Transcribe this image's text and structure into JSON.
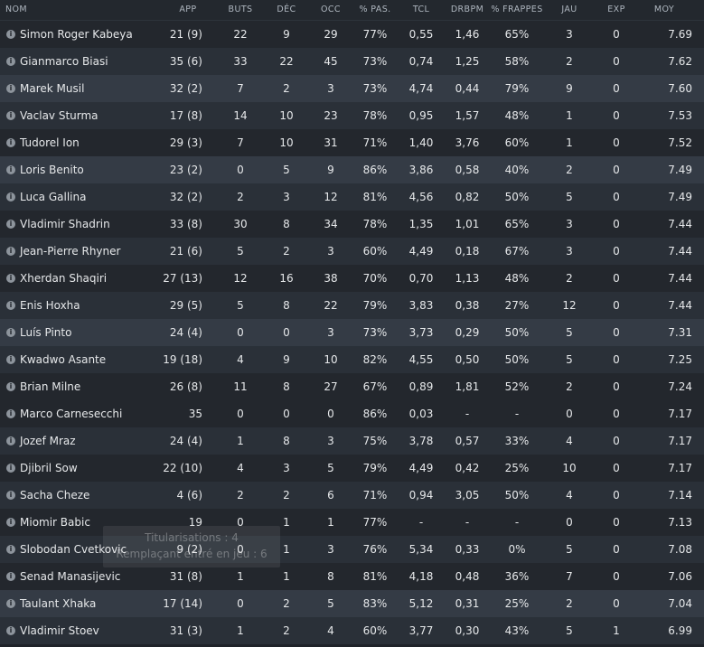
{
  "columns": {
    "name": "NOM",
    "app": "APP",
    "buts": "BUTS",
    "dec": "DÉC",
    "occ": "OCC",
    "pas": "% PAS.",
    "tcl": "TCL",
    "drbpm": "DRBPM",
    "frappes": "% FRAPPES",
    "jau": "JAU",
    "exp": "EXP",
    "moy": "MOY"
  },
  "info_icon": "info-icon",
  "rows": [
    {
      "name": "Simon Roger Kabeya",
      "app": "21 (9)",
      "buts": "22",
      "dec": "9",
      "occ": "29",
      "pas": "77%",
      "tcl": "0,55",
      "drbpm": "1,46",
      "frappes": "65%",
      "jau": "3",
      "exp": "0",
      "moy": "7.69"
    },
    {
      "name": "Gianmarco Biasi",
      "app": "35 (6)",
      "buts": "33",
      "dec": "22",
      "occ": "45",
      "pas": "73%",
      "tcl": "0,74",
      "drbpm": "1,25",
      "frappes": "58%",
      "jau": "2",
      "exp": "0",
      "moy": "7.62"
    },
    {
      "name": "Marek Musil",
      "app": "32 (2)",
      "buts": "7",
      "dec": "2",
      "occ": "3",
      "pas": "73%",
      "tcl": "4,74",
      "drbpm": "0,44",
      "frappes": "79%",
      "jau": "9",
      "exp": "0",
      "moy": "7.60"
    },
    {
      "name": "Vaclav Sturma",
      "app": "17 (8)",
      "buts": "14",
      "dec": "10",
      "occ": "23",
      "pas": "78%",
      "tcl": "0,95",
      "drbpm": "1,57",
      "frappes": "48%",
      "jau": "1",
      "exp": "0",
      "moy": "7.53"
    },
    {
      "name": "Tudorel Ion",
      "app": "29 (3)",
      "buts": "7",
      "dec": "10",
      "occ": "31",
      "pas": "71%",
      "tcl": "1,40",
      "drbpm": "3,76",
      "frappes": "60%",
      "jau": "1",
      "exp": "0",
      "moy": "7.52"
    },
    {
      "name": "Loris Benito",
      "app": "23 (2)",
      "buts": "0",
      "dec": "5",
      "occ": "9",
      "pas": "86%",
      "tcl": "3,86",
      "drbpm": "0,58",
      "frappes": "40%",
      "jau": "2",
      "exp": "0",
      "moy": "7.49"
    },
    {
      "name": "Luca Gallina",
      "app": "32 (2)",
      "buts": "2",
      "dec": "3",
      "occ": "12",
      "pas": "81%",
      "tcl": "4,56",
      "drbpm": "0,82",
      "frappes": "50%",
      "jau": "5",
      "exp": "0",
      "moy": "7.49"
    },
    {
      "name": "Vladimir Shadrin",
      "app": "33 (8)",
      "buts": "30",
      "dec": "8",
      "occ": "34",
      "pas": "78%",
      "tcl": "1,35",
      "drbpm": "1,01",
      "frappes": "65%",
      "jau": "3",
      "exp": "0",
      "moy": "7.44"
    },
    {
      "name": "Jean-Pierre Rhyner",
      "app": "21 (6)",
      "buts": "5",
      "dec": "2",
      "occ": "3",
      "pas": "60%",
      "tcl": "4,49",
      "drbpm": "0,18",
      "frappes": "67%",
      "jau": "3",
      "exp": "0",
      "moy": "7.44"
    },
    {
      "name": "Xherdan Shaqiri",
      "app": "27 (13)",
      "buts": "12",
      "dec": "16",
      "occ": "38",
      "pas": "70%",
      "tcl": "0,70",
      "drbpm": "1,13",
      "frappes": "48%",
      "jau": "2",
      "exp": "0",
      "moy": "7.44"
    },
    {
      "name": "Enis Hoxha",
      "app": "29 (5)",
      "buts": "5",
      "dec": "8",
      "occ": "22",
      "pas": "79%",
      "tcl": "3,83",
      "drbpm": "0,38",
      "frappes": "27%",
      "jau": "12",
      "exp": "0",
      "moy": "7.44"
    },
    {
      "name": "Luís Pinto",
      "app": "24 (4)",
      "buts": "0",
      "dec": "0",
      "occ": "3",
      "pas": "73%",
      "tcl": "3,73",
      "drbpm": "0,29",
      "frappes": "50%",
      "jau": "5",
      "exp": "0",
      "moy": "7.31"
    },
    {
      "name": "Kwadwo Asante",
      "app": "19 (18)",
      "buts": "4",
      "dec": "9",
      "occ": "10",
      "pas": "82%",
      "tcl": "4,55",
      "drbpm": "0,50",
      "frappes": "50%",
      "jau": "5",
      "exp": "0",
      "moy": "7.25"
    },
    {
      "name": "Brian Milne",
      "app": "26 (8)",
      "buts": "11",
      "dec": "8",
      "occ": "27",
      "pas": "67%",
      "tcl": "0,89",
      "drbpm": "1,81",
      "frappes": "52%",
      "jau": "2",
      "exp": "0",
      "moy": "7.24"
    },
    {
      "name": "Marco Carnesecchi",
      "app": "35",
      "buts": "0",
      "dec": "0",
      "occ": "0",
      "pas": "86%",
      "tcl": "0,03",
      "drbpm": "-",
      "frappes": "-",
      "jau": "0",
      "exp": "0",
      "moy": "7.17"
    },
    {
      "name": "Jozef Mraz",
      "app": "24 (4)",
      "buts": "1",
      "dec": "8",
      "occ": "3",
      "pas": "75%",
      "tcl": "3,78",
      "drbpm": "0,57",
      "frappes": "33%",
      "jau": "4",
      "exp": "0",
      "moy": "7.17"
    },
    {
      "name": "Djibril Sow",
      "app": "22 (10)",
      "buts": "4",
      "dec": "3",
      "occ": "5",
      "pas": "79%",
      "tcl": "4,49",
      "drbpm": "0,42",
      "frappes": "25%",
      "jau": "10",
      "exp": "0",
      "moy": "7.17"
    },
    {
      "name": "Sacha Cheze",
      "app": "4 (6)",
      "buts": "2",
      "dec": "2",
      "occ": "6",
      "pas": "71%",
      "tcl": "0,94",
      "drbpm": "3,05",
      "frappes": "50%",
      "jau": "4",
      "exp": "0",
      "moy": "7.14"
    },
    {
      "name": "Miomir Babic",
      "app": "19",
      "buts": "0",
      "dec": "1",
      "occ": "1",
      "pas": "77%",
      "tcl": "-",
      "drbpm": "-",
      "frappes": "-",
      "jau": "0",
      "exp": "0",
      "moy": "7.13"
    },
    {
      "name": "Slobodan Cvetkovic",
      "app": "9 (2)",
      "buts": "0",
      "dec": "1",
      "occ": "3",
      "pas": "76%",
      "tcl": "5,34",
      "drbpm": "0,33",
      "frappes": "0%",
      "jau": "5",
      "exp": "0",
      "moy": "7.08"
    },
    {
      "name": "Senad Manasijevic",
      "app": "31 (8)",
      "buts": "1",
      "dec": "1",
      "occ": "8",
      "pas": "81%",
      "tcl": "4,18",
      "drbpm": "0,48",
      "frappes": "36%",
      "jau": "7",
      "exp": "0",
      "moy": "7.06"
    },
    {
      "name": "Taulant Xhaka",
      "app": "17 (14)",
      "buts": "0",
      "dec": "2",
      "occ": "5",
      "pas": "83%",
      "tcl": "5,12",
      "drbpm": "0,31",
      "frappes": "25%",
      "jau": "2",
      "exp": "0",
      "moy": "7.04"
    },
    {
      "name": "Vladimir Stoev",
      "app": "31 (3)",
      "buts": "1",
      "dec": "2",
      "occ": "4",
      "pas": "60%",
      "tcl": "3,77",
      "drbpm": "0,30",
      "frappes": "43%",
      "jau": "5",
      "exp": "1",
      "moy": "6.99"
    }
  ],
  "tooltip": {
    "line1": "Titularisations : 4",
    "line2": "Remplaçant entré en jeu : 6"
  },
  "colors": {
    "background": "#1f2329",
    "row_dark": "#23272d",
    "row_mid": "#2a3038",
    "row_light": "#343b45",
    "header_text": "#aeb6bf",
    "text": "#e6e8ea"
  }
}
